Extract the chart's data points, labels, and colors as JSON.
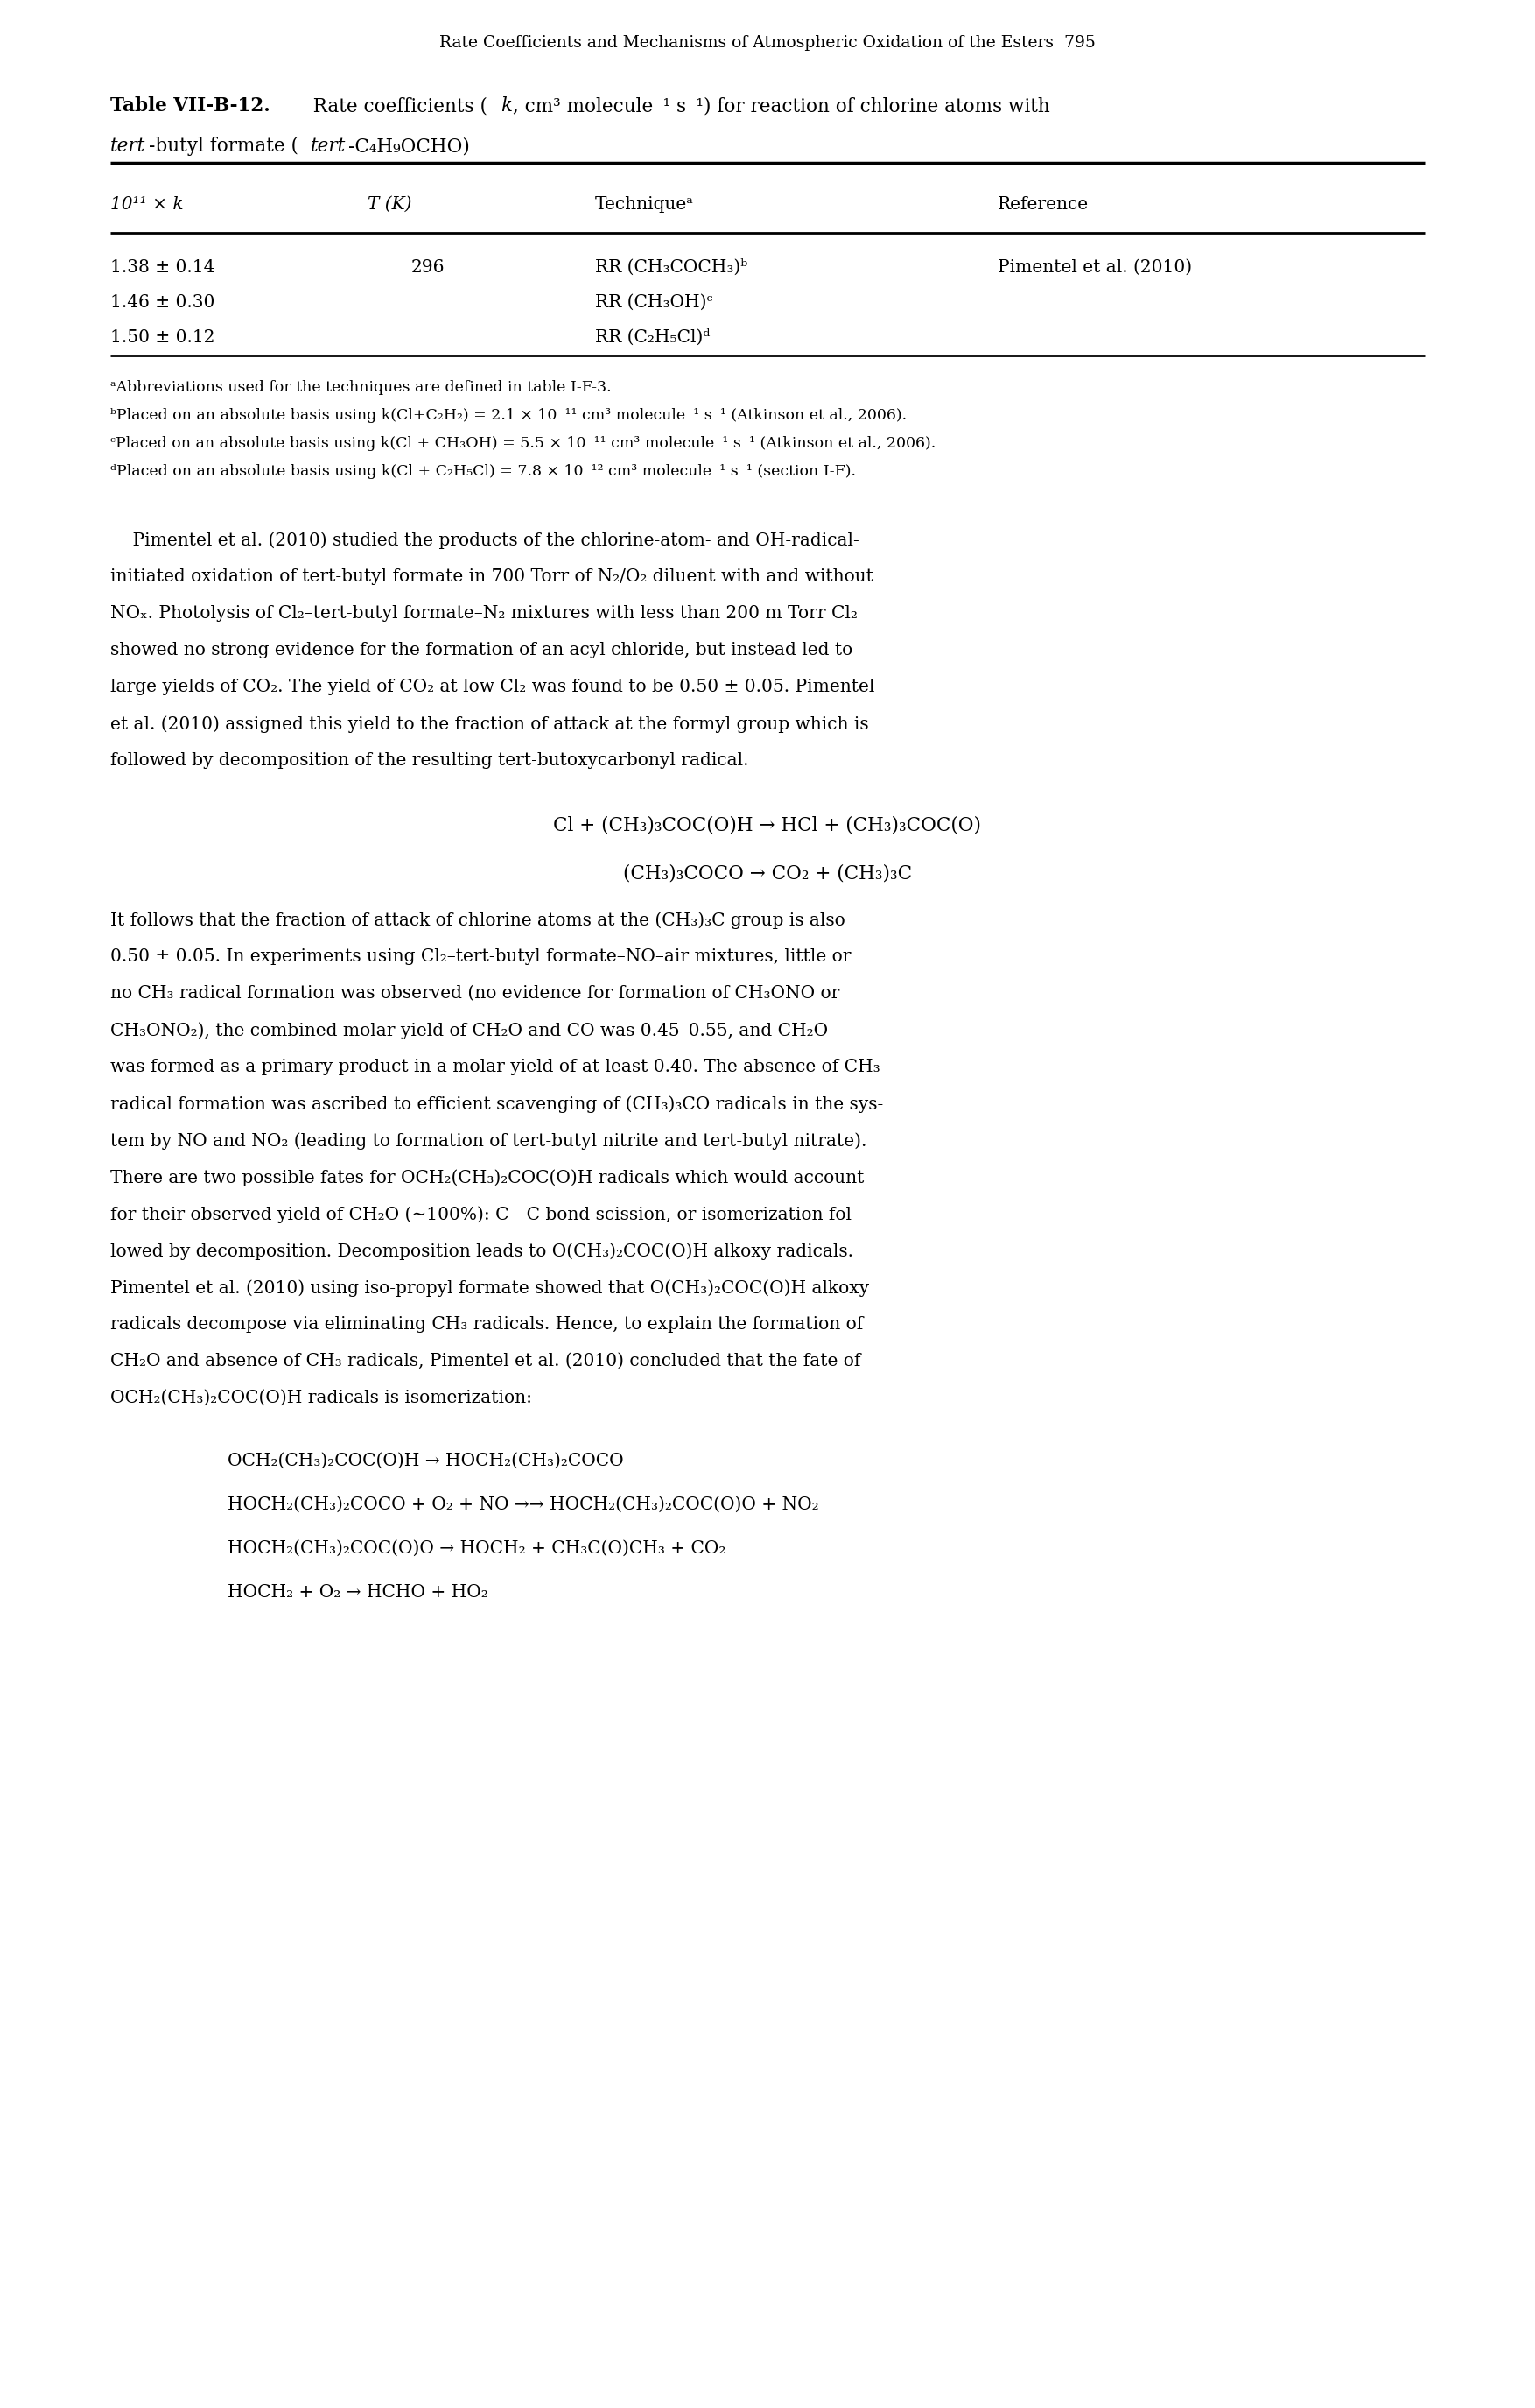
{
  "page_header": "Rate Coefficients and Mechanisms of Atmospheric Oxidation of the Esters  795",
  "table_title_bold1": "Table VII-B-12.",
  "table_title_norm1": "  Rate coefficients (",
  "table_title_k": "k",
  "table_title_norm2": ", cm³ molecule⁻¹ s⁻¹) for reaction of chlorine atoms with",
  "table_title_line2_italic": "tert",
  "table_title_line2b": "-butyl formate (",
  "table_title_line2_italic2": "tert",
  "table_title_line2c": "-C₄H₉OCHO)",
  "col_h1": "10¹¹ × k",
  "col_h2": "T (K)",
  "col_h3": "Techniqueᵃ",
  "col_h4": "Reference",
  "table_rows": [
    [
      "1.38 ± 0.14",
      "296",
      "RR (CH₃COCH₃)ᵇ",
      "Pimentel et al. (2010)"
    ],
    [
      "1.46 ± 0.30",
      "",
      "RR (CH₃OH)ᶜ",
      ""
    ],
    [
      "1.50 ± 0.12",
      "",
      "RR (C₂H₅Cl)ᵈ",
      ""
    ]
  ],
  "footnote_a": "ᵃAbbreviations used for the techniques are defined in table I-F-3.",
  "footnote_b": "ᵇPlaced on an absolute basis using k(Cl+C₂H₂) = 2.1 × 10⁻¹¹ cm³ molecule⁻¹ s⁻¹ (Atkinson et al., 2006).",
  "footnote_c": "ᶜPlaced on an absolute basis using k(Cl + CH₃OH) = 5.5 × 10⁻¹¹ cm³ molecule⁻¹ s⁻¹ (Atkinson et al., 2006).",
  "footnote_d": "ᵈPlaced on an absolute basis using k(Cl + C₂H₅Cl) = 7.8 × 10⁻¹² cm³ molecule⁻¹ s⁻¹ (section I-F).",
  "para1_lines": [
    "    Pimentel et al. (2010) studied the products of the chlorine-atom- and OH-radical-",
    "initiated oxidation of tert-butyl formate in 700 Torr of N₂/O₂ diluent with and without",
    "NOₓ. Photolysis of Cl₂–tert-butyl formate–N₂ mixtures with less than 200 m Torr Cl₂",
    "showed no strong evidence for the formation of an acyl chloride, but instead led to",
    "large yields of CO₂. The yield of CO₂ at low Cl₂ was found to be 0.50 ± 0.05. Pimentel",
    "et al. (2010) assigned this yield to the fraction of attack at the formyl group which is",
    "followed by decomposition of the resulting tert-butoxycarbonyl radical."
  ],
  "eq1": "Cl + (CH₃)₃COC(O)H → HCl + (CH₃)₃COC(O)",
  "eq2": "(CH₃)₃COCO → CO₂ + (CH₃)₃C",
  "para2_lines": [
    "It follows that the fraction of attack of chlorine atoms at the (CH₃)₃C group is also",
    "0.50 ± 0.05. In experiments using Cl₂–tert-butyl formate–NO–air mixtures, little or",
    "no CH₃ radical formation was observed (no evidence for formation of CH₃ONO or",
    "CH₃ONO₂), the combined molar yield of CH₂O and CO was 0.45–0.55, and CH₂O",
    "was formed as a primary product in a molar yield of at least 0.40. The absence of CH₃",
    "radical formation was ascribed to efficient scavenging of (CH₃)₃CO radicals in the sys-",
    "tem by NO and NO₂ (leading to formation of tert-butyl nitrite and tert-butyl nitrate).",
    "There are two possible fates for OCH₂(CH₃)₂COC(O)H radicals which would account",
    "for their observed yield of CH₂O (∼100%): C—C bond scission, or isomerization fol-",
    "lowed by decomposition. Decomposition leads to O(CH₃)₂COC(O)H alkoxy radicals.",
    "Pimentel et al. (2010) using iso-propyl formate showed that O(CH₃)₂COC(O)H alkoxy",
    "radicals decompose via eliminating CH₃ radicals. Hence, to explain the formation of",
    "CH₂O and absence of CH₃ radicals, Pimentel et al. (2010) concluded that the fate of",
    "OCH₂(CH₃)₂COC(O)H radicals is isomerization:"
  ],
  "eq3": "OCH₂(CH₃)₂COC(O)H → HOCH₂(CH₃)₂COCO",
  "eq4": "HOCH₂(CH₃)₂COCO + O₂ + NO →→ HOCH₂(CH₃)₂COC(O)O + NO₂",
  "eq5": "HOCH₂(CH₃)₂COC(O)O → HOCH₂ + CH₃C(O)CH₃ + CO₂",
  "eq6": "HOCH₂ + O₂ → HCHO + HO₂"
}
